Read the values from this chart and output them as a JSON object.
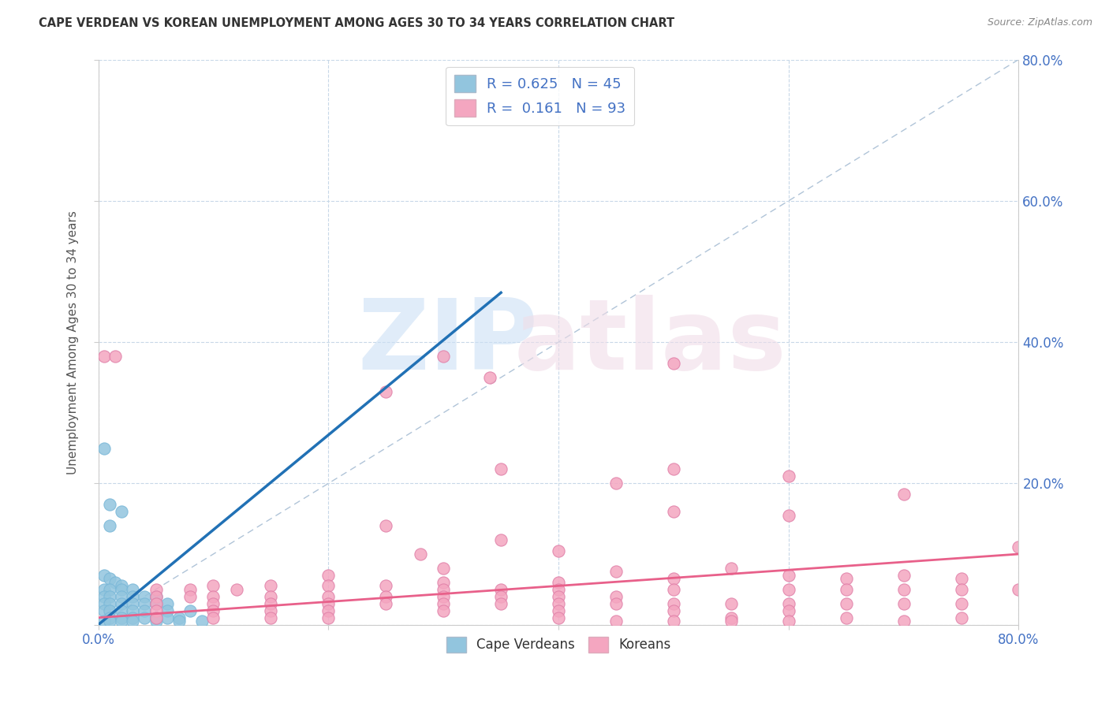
{
  "title": "CAPE VERDEAN VS KOREAN UNEMPLOYMENT AMONG AGES 30 TO 34 YEARS CORRELATION CHART",
  "source": "Source: ZipAtlas.com",
  "ylabel": "Unemployment Among Ages 30 to 34 years",
  "xlim": [
    0,
    0.8
  ],
  "ylim": [
    0,
    0.8
  ],
  "xticks": [
    0.0,
    0.2,
    0.4,
    0.6,
    0.8
  ],
  "yticks": [
    0.0,
    0.2,
    0.4,
    0.6,
    0.8
  ],
  "xticklabels": [
    "0.0%",
    "",
    "",
    "",
    "80.0%"
  ],
  "yticklabels_right": [
    "",
    "20.0%",
    "40.0%",
    "60.0%",
    "80.0%"
  ],
  "legend_label_cv": "Cape Verdeans",
  "legend_label_ko": "Koreans",
  "cv_color": "#92c5de",
  "ko_color": "#f4a6c0",
  "cv_line_color": "#2171b5",
  "ko_line_color": "#e8608a",
  "diagonal_color": "#b0c4d8",
  "background_color": "#ffffff",
  "cv_scatter": [
    [
      0.005,
      0.25
    ],
    [
      0.01,
      0.17
    ],
    [
      0.02,
      0.16
    ],
    [
      0.01,
      0.14
    ],
    [
      0.005,
      0.07
    ],
    [
      0.01,
      0.065
    ],
    [
      0.015,
      0.06
    ],
    [
      0.02,
      0.055
    ],
    [
      0.005,
      0.05
    ],
    [
      0.01,
      0.05
    ],
    [
      0.02,
      0.05
    ],
    [
      0.03,
      0.05
    ],
    [
      0.005,
      0.04
    ],
    [
      0.01,
      0.04
    ],
    [
      0.02,
      0.04
    ],
    [
      0.03,
      0.04
    ],
    [
      0.04,
      0.04
    ],
    [
      0.05,
      0.04
    ],
    [
      0.005,
      0.03
    ],
    [
      0.01,
      0.03
    ],
    [
      0.02,
      0.03
    ],
    [
      0.03,
      0.03
    ],
    [
      0.04,
      0.03
    ],
    [
      0.05,
      0.03
    ],
    [
      0.06,
      0.03
    ],
    [
      0.005,
      0.02
    ],
    [
      0.01,
      0.02
    ],
    [
      0.02,
      0.02
    ],
    [
      0.03,
      0.02
    ],
    [
      0.04,
      0.02
    ],
    [
      0.06,
      0.02
    ],
    [
      0.08,
      0.02
    ],
    [
      0.01,
      0.01
    ],
    [
      0.02,
      0.01
    ],
    [
      0.03,
      0.01
    ],
    [
      0.04,
      0.01
    ],
    [
      0.05,
      0.01
    ],
    [
      0.06,
      0.01
    ],
    [
      0.07,
      0.01
    ],
    [
      0.005,
      0.005
    ],
    [
      0.01,
      0.005
    ],
    [
      0.02,
      0.005
    ],
    [
      0.03,
      0.005
    ],
    [
      0.05,
      0.005
    ],
    [
      0.07,
      0.005
    ],
    [
      0.09,
      0.005
    ]
  ],
  "ko_scatter": [
    [
      0.005,
      0.38
    ],
    [
      0.015,
      0.38
    ],
    [
      0.3,
      0.38
    ],
    [
      0.34,
      0.35
    ],
    [
      0.5,
      0.37
    ],
    [
      0.25,
      0.33
    ],
    [
      0.35,
      0.22
    ],
    [
      0.6,
      0.21
    ],
    [
      0.45,
      0.2
    ],
    [
      0.5,
      0.22
    ],
    [
      0.25,
      0.14
    ],
    [
      0.5,
      0.16
    ],
    [
      0.6,
      0.155
    ],
    [
      0.7,
      0.185
    ],
    [
      0.35,
      0.12
    ],
    [
      0.8,
      0.11
    ],
    [
      0.28,
      0.1
    ],
    [
      0.4,
      0.105
    ],
    [
      0.3,
      0.08
    ],
    [
      0.55,
      0.08
    ],
    [
      0.2,
      0.07
    ],
    [
      0.45,
      0.075
    ],
    [
      0.6,
      0.07
    ],
    [
      0.7,
      0.07
    ],
    [
      0.3,
      0.06
    ],
    [
      0.4,
      0.06
    ],
    [
      0.5,
      0.065
    ],
    [
      0.65,
      0.065
    ],
    [
      0.75,
      0.065
    ],
    [
      0.1,
      0.055
    ],
    [
      0.15,
      0.055
    ],
    [
      0.2,
      0.055
    ],
    [
      0.25,
      0.055
    ],
    [
      0.3,
      0.05
    ],
    [
      0.35,
      0.05
    ],
    [
      0.4,
      0.05
    ],
    [
      0.5,
      0.05
    ],
    [
      0.6,
      0.05
    ],
    [
      0.65,
      0.05
    ],
    [
      0.7,
      0.05
    ],
    [
      0.75,
      0.05
    ],
    [
      0.8,
      0.05
    ],
    [
      0.05,
      0.05
    ],
    [
      0.08,
      0.05
    ],
    [
      0.12,
      0.05
    ],
    [
      0.1,
      0.04
    ],
    [
      0.15,
      0.04
    ],
    [
      0.2,
      0.04
    ],
    [
      0.25,
      0.04
    ],
    [
      0.3,
      0.04
    ],
    [
      0.35,
      0.04
    ],
    [
      0.4,
      0.04
    ],
    [
      0.45,
      0.04
    ],
    [
      0.05,
      0.04
    ],
    [
      0.08,
      0.04
    ],
    [
      0.05,
      0.03
    ],
    [
      0.1,
      0.03
    ],
    [
      0.15,
      0.03
    ],
    [
      0.2,
      0.03
    ],
    [
      0.25,
      0.03
    ],
    [
      0.3,
      0.03
    ],
    [
      0.35,
      0.03
    ],
    [
      0.4,
      0.03
    ],
    [
      0.45,
      0.03
    ],
    [
      0.5,
      0.03
    ],
    [
      0.55,
      0.03
    ],
    [
      0.6,
      0.03
    ],
    [
      0.65,
      0.03
    ],
    [
      0.7,
      0.03
    ],
    [
      0.75,
      0.03
    ],
    [
      0.05,
      0.02
    ],
    [
      0.1,
      0.02
    ],
    [
      0.15,
      0.02
    ],
    [
      0.2,
      0.02
    ],
    [
      0.3,
      0.02
    ],
    [
      0.4,
      0.02
    ],
    [
      0.5,
      0.02
    ],
    [
      0.6,
      0.02
    ],
    [
      0.05,
      0.01
    ],
    [
      0.1,
      0.01
    ],
    [
      0.15,
      0.01
    ],
    [
      0.2,
      0.01
    ],
    [
      0.4,
      0.01
    ],
    [
      0.5,
      0.005
    ],
    [
      0.6,
      0.005
    ],
    [
      0.7,
      0.005
    ],
    [
      0.55,
      0.01
    ],
    [
      0.65,
      0.01
    ],
    [
      0.75,
      0.01
    ],
    [
      0.45,
      0.005
    ],
    [
      0.55,
      0.005
    ]
  ],
  "cv_line_x": [
    0.0,
    0.35
  ],
  "cv_line_y": [
    0.0,
    0.47
  ],
  "ko_line_x": [
    0.0,
    0.8
  ],
  "ko_line_y": [
    0.01,
    0.1
  ]
}
